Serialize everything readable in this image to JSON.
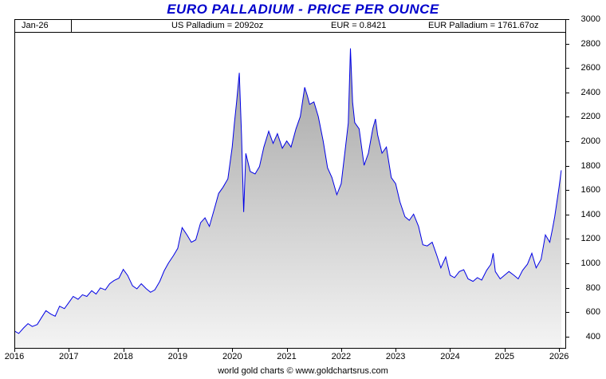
{
  "header": {
    "title": "EURO PALLADIUM - PRICE PER OUNCE"
  },
  "info_bar": {
    "date_label": "Jan-26",
    "us_palladium": "US Palladium = 2092oz",
    "eur_rate": "EUR = 0.8421",
    "eur_palladium": "EUR Palladium = 1761.67oz"
  },
  "footer": {
    "credit": "world gold charts © www.goldchartsrus.com"
  },
  "colors": {
    "title": "#0000cc",
    "line": "#0000e6",
    "fill_top": "#a2a2a2",
    "fill_bottom": "#f4f4f4",
    "axis": "#000000"
  },
  "chart_data": {
    "type": "area",
    "title": "EURO PALLADIUM - PRICE PER OUNCE",
    "xlabel": "",
    "ylabel": "",
    "grid": false,
    "legend": null,
    "xlim": [
      2016,
      2026.13
    ],
    "ylim": [
      300,
      3000
    ],
    "x_ticks": [
      2016,
      2017,
      2018,
      2019,
      2020,
      2021,
      2022,
      2023,
      2024,
      2025,
      2026
    ],
    "y_ticks": [
      400,
      600,
      800,
      1000,
      1200,
      1400,
      1600,
      1800,
      2000,
      2200,
      2400,
      2600,
      2800,
      3000
    ],
    "series": [
      {
        "name": "EUR Palladium price per ounce",
        "x": [
          2016.0,
          2016.08,
          2016.17,
          2016.25,
          2016.33,
          2016.42,
          2016.5,
          2016.58,
          2016.67,
          2016.75,
          2016.83,
          2016.92,
          2017.0,
          2017.08,
          2017.17,
          2017.25,
          2017.33,
          2017.42,
          2017.5,
          2017.58,
          2017.67,
          2017.75,
          2017.83,
          2017.92,
          2018.0,
          2018.08,
          2018.17,
          2018.25,
          2018.33,
          2018.42,
          2018.5,
          2018.58,
          2018.67,
          2018.75,
          2018.83,
          2018.92,
          2019.0,
          2019.08,
          2019.17,
          2019.25,
          2019.33,
          2019.42,
          2019.5,
          2019.58,
          2019.67,
          2019.75,
          2019.83,
          2019.92,
          2020.0,
          2020.04,
          2020.08,
          2020.13,
          2020.17,
          2020.21,
          2020.25,
          2020.33,
          2020.42,
          2020.5,
          2020.58,
          2020.67,
          2020.75,
          2020.83,
          2020.92,
          2021.0,
          2021.08,
          2021.17,
          2021.25,
          2021.33,
          2021.38,
          2021.42,
          2021.5,
          2021.58,
          2021.67,
          2021.75,
          2021.83,
          2021.92,
          2022.0,
          2022.08,
          2022.13,
          2022.17,
          2022.21,
          2022.25,
          2022.33,
          2022.42,
          2022.5,
          2022.58,
          2022.63,
          2022.67,
          2022.75,
          2022.83,
          2022.92,
          2023.0,
          2023.08,
          2023.17,
          2023.25,
          2023.33,
          2023.42,
          2023.5,
          2023.58,
          2023.67,
          2023.75,
          2023.83,
          2023.92,
          2024.0,
          2024.08,
          2024.17,
          2024.25,
          2024.33,
          2024.42,
          2024.5,
          2024.58,
          2024.67,
          2024.75,
          2024.79,
          2024.83,
          2024.92,
          2025.0,
          2025.08,
          2025.17,
          2025.25,
          2025.33,
          2025.42,
          2025.5,
          2025.58,
          2025.67,
          2025.75,
          2025.83,
          2025.88,
          2025.92,
          2026.0,
          2026.04
        ],
        "values": [
          445,
          425,
          470,
          505,
          482,
          498,
          556,
          612,
          583,
          566,
          648,
          628,
          678,
          728,
          705,
          742,
          728,
          775,
          748,
          798,
          782,
          832,
          858,
          878,
          950,
          900,
          815,
          790,
          832,
          792,
          762,
          782,
          852,
          938,
          1002,
          1062,
          1122,
          1292,
          1232,
          1172,
          1192,
          1332,
          1372,
          1302,
          1442,
          1572,
          1622,
          1692,
          1952,
          2150,
          2320,
          2560,
          2050,
          1420,
          1900,
          1752,
          1732,
          1792,
          1952,
          2082,
          1982,
          2062,
          1942,
          2002,
          1952,
          2102,
          2202,
          2442,
          2372,
          2302,
          2322,
          2202,
          2002,
          1782,
          1702,
          1562,
          1652,
          1952,
          2150,
          2760,
          2320,
          2152,
          2102,
          1802,
          1902,
          2102,
          2182,
          2052,
          1902,
          1952,
          1702,
          1652,
          1502,
          1382,
          1352,
          1402,
          1302,
          1152,
          1142,
          1172,
          1072,
          962,
          1052,
          902,
          882,
          932,
          947,
          872,
          852,
          882,
          862,
          942,
          992,
          1082,
          932,
          872,
          902,
          932,
          902,
          872,
          942,
          992,
          1082,
          962,
          1032,
          1232,
          1172,
          1282,
          1382,
          1622,
          1761.67
        ]
      }
    ]
  }
}
